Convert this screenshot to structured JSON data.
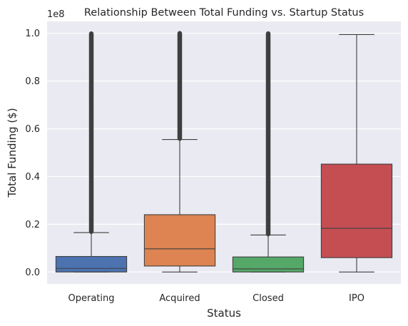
{
  "chart_data": {
    "type": "box",
    "title": "Relationship Between Total Funding vs. Startup Status",
    "xlabel": "Status",
    "ylabel": "Total Funding ($)",
    "y_offset_label": "1e8",
    "y_scale": 100000000,
    "ylim": [
      -0.05,
      1.05
    ],
    "y_ticks": [
      "0.0",
      "0.2",
      "0.4",
      "0.6",
      "0.8",
      "1.0"
    ],
    "y_tick_values": [
      0.0,
      0.2,
      0.4,
      0.6,
      0.8,
      1.0
    ],
    "grid": true,
    "background": "#eaeaf2",
    "categories": [
      "Operating",
      "Acquired",
      "Closed",
      "IPO"
    ],
    "boxes": [
      {
        "name": "Operating",
        "color": "#4c72b0",
        "whisker_low": 0.0,
        "q1": 0.0,
        "median": 0.015,
        "q3": 0.065,
        "whisker_high": 0.165,
        "outliers_from": 0.165,
        "outliers_to": 1.0
      },
      {
        "name": "Acquired",
        "color": "#dd8452",
        "whisker_low": 0.0,
        "q1": 0.025,
        "median": 0.097,
        "q3": 0.24,
        "whisker_high": 0.555,
        "outliers_from": 0.555,
        "outliers_to": 1.0
      },
      {
        "name": "Closed",
        "color": "#55a868",
        "whisker_low": 0.0,
        "q1": 0.0,
        "median": 0.013,
        "q3": 0.063,
        "whisker_high": 0.155,
        "outliers_from": 0.155,
        "outliers_to": 1.0
      },
      {
        "name": "IPO",
        "color": "#c44e52",
        "whisker_low": 0.0,
        "q1": 0.06,
        "median": 0.183,
        "q3": 0.452,
        "whisker_high": 0.995,
        "outliers_from": null,
        "outliers_to": null
      }
    ]
  }
}
